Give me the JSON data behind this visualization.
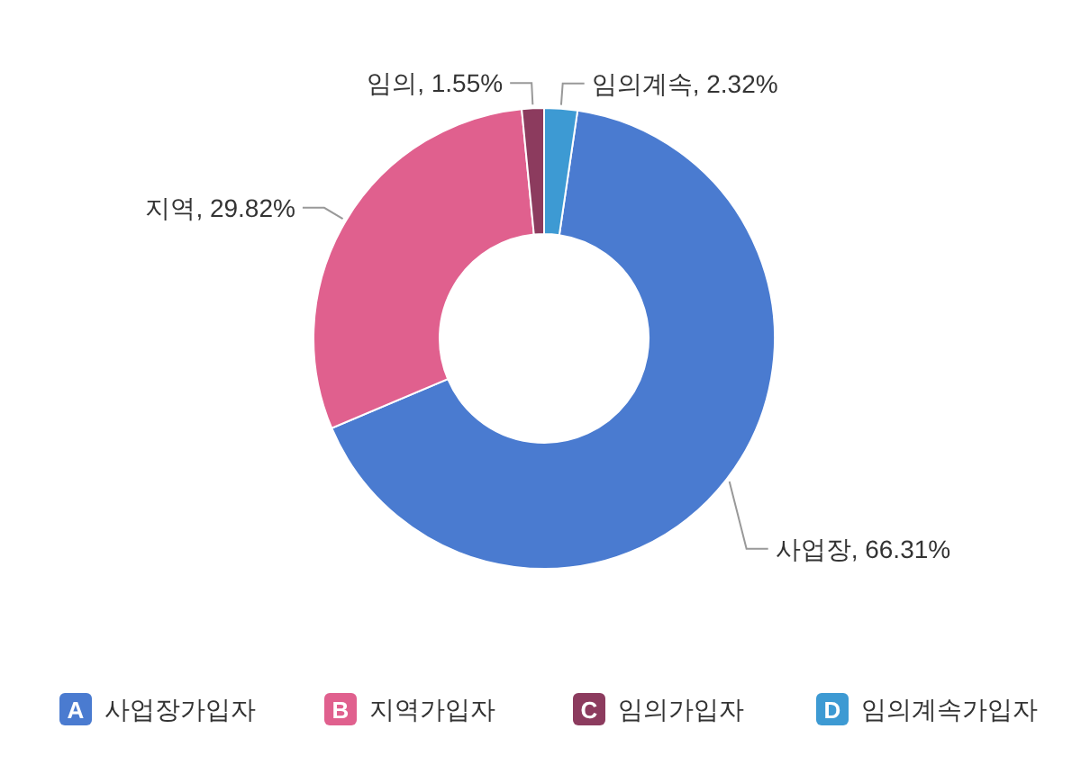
{
  "chart_data": {
    "type": "donut",
    "categories": [
      "사업장가입자",
      "지역가입자",
      "임의가입자",
      "임의계속가입자"
    ],
    "values": [
      66.31,
      29.82,
      1.55,
      2.32
    ],
    "colors": [
      "#4a7bd0",
      "#e0608e",
      "#8c3b5e",
      "#3d9ad3"
    ],
    "value_labels": [
      "사업장, 66.31%",
      "지역, 29.82%",
      "임의, 1.55%",
      "임의계속, 2.32%"
    ],
    "annotations": [
      "A",
      "B",
      "C",
      "D"
    ],
    "legend": "bottom"
  }
}
